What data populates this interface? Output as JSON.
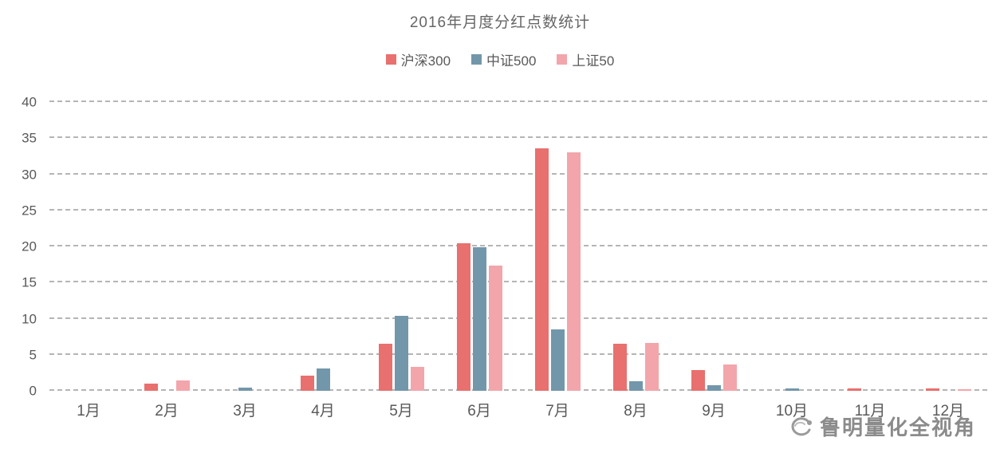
{
  "chart": {
    "title": "2016年月度分红点数统计"
  },
  "watermark": {
    "text": "鲁明量化全视角"
  },
  "chart_data": {
    "type": "bar",
    "title": "2016年月度分红点数统计",
    "categories": [
      "1月",
      "2月",
      "3月",
      "4月",
      "5月",
      "6月",
      "7月",
      "8月",
      "9月",
      "10月",
      "11月",
      "12月"
    ],
    "series": [
      {
        "name": "沪深300",
        "color": "#e8706e",
        "values": [
          0,
          1.0,
          0,
          2.1,
          6.5,
          20.4,
          33.6,
          6.5,
          2.9,
          0,
          0.3,
          0.3
        ]
      },
      {
        "name": "中证500",
        "color": "#7397aa",
        "values": [
          0,
          0,
          0.4,
          3.1,
          10.4,
          19.9,
          8.5,
          1.3,
          0.8,
          0.3,
          0,
          0
        ]
      },
      {
        "name": "上证50",
        "color": "#f2a6ab",
        "values": [
          0,
          1.4,
          0,
          0,
          3.3,
          17.3,
          33.0,
          6.6,
          3.7,
          0,
          0,
          0.2
        ]
      }
    ],
    "ylim": [
      0,
      40
    ],
    "yticks": [
      0,
      5,
      10,
      15,
      20,
      25,
      30,
      35,
      40
    ],
    "grid": "dashed-horizontal",
    "legend_position": "top",
    "xlabel": "",
    "ylabel": ""
  }
}
